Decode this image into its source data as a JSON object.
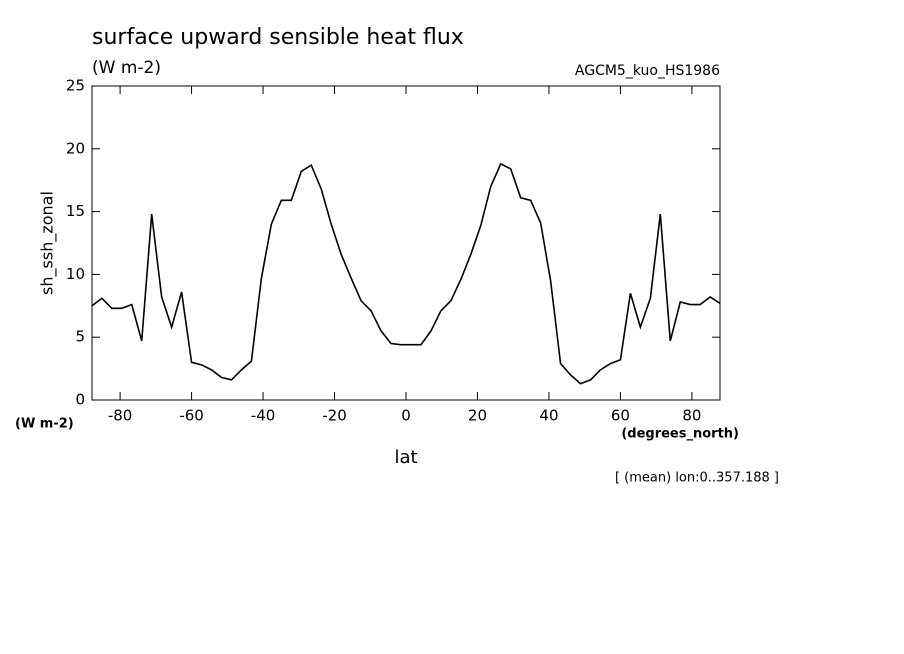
{
  "chart_data": {
    "type": "line",
    "title": "surface upward sensible heat flux",
    "subtitle": "(W m-2)",
    "source": "AGCM5_kuo_HS1986",
    "y_label": "sh_ssh_zonal",
    "y_units": "(W m-2)",
    "x_label": "lat",
    "x_units": "(degrees_north)",
    "annotation": "[ (mean) lon:0..357.188 ]",
    "x": [
      -87.86,
      -85.1,
      -82.31,
      -79.53,
      -76.74,
      -73.95,
      -71.16,
      -68.37,
      -65.58,
      -62.79,
      -60.0,
      -57.21,
      -54.42,
      -51.63,
      -48.84,
      -46.04,
      -43.25,
      -40.46,
      -37.67,
      -34.88,
      -32.09,
      -29.3,
      -26.51,
      -23.72,
      -20.93,
      -18.14,
      -15.35,
      -12.56,
      -9.77,
      -6.98,
      -4.19,
      -1.4,
      1.4,
      4.19,
      6.98,
      9.77,
      12.56,
      15.35,
      18.14,
      20.93,
      23.72,
      26.51,
      29.3,
      32.09,
      34.88,
      37.67,
      40.46,
      43.25,
      46.04,
      48.84,
      51.63,
      54.42,
      57.21,
      60.0,
      62.79,
      65.58,
      68.37,
      71.16,
      73.95,
      76.74,
      79.53,
      82.31,
      85.1,
      87.86
    ],
    "series": [
      {
        "name": "sh_ssh_zonal",
        "color": "#000000",
        "values": [
          7.5,
          8.1,
          7.3,
          7.3,
          7.6,
          4.7,
          14.8,
          8.2,
          5.8,
          8.6,
          3.0,
          2.8,
          2.4,
          1.8,
          1.6,
          2.4,
          3.1,
          9.7,
          14.0,
          15.9,
          15.9,
          18.2,
          18.7,
          16.8,
          14.0,
          11.6,
          9.7,
          7.9,
          7.1,
          5.5,
          4.5,
          4.4,
          4.4,
          4.4,
          5.5,
          7.1,
          7.9,
          9.6,
          11.6,
          13.9,
          17.0,
          18.8,
          18.4,
          16.1,
          15.9,
          14.1,
          9.5,
          2.9,
          2.0,
          1.3,
          1.6,
          2.4,
          2.9,
          3.2,
          8.5,
          5.8,
          8.1,
          14.8,
          4.7,
          7.8,
          7.6,
          7.6,
          8.2,
          7.7
        ]
      }
    ],
    "xlim": [
      -87.86,
      87.86
    ],
    "xticks": [
      -80,
      -60,
      -40,
      -20,
      0,
      20,
      40,
      60,
      80
    ],
    "ylim": [
      0,
      25
    ],
    "yticks": [
      0,
      5,
      10,
      15,
      20,
      25
    ]
  }
}
